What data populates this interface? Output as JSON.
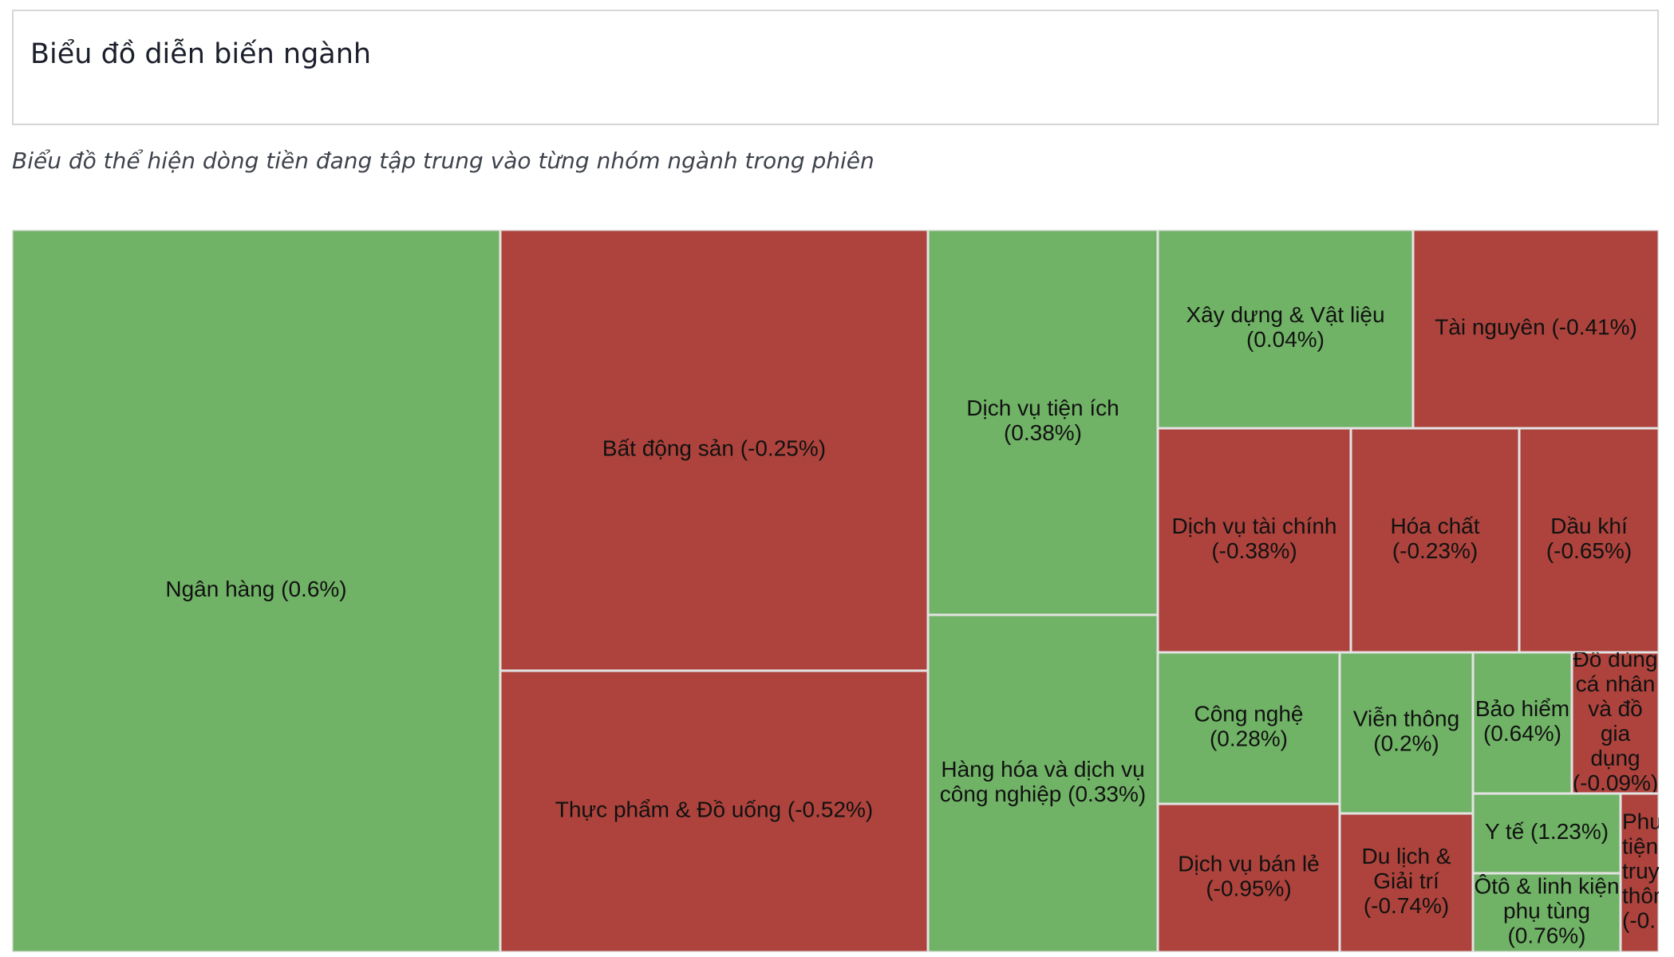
{
  "header": {
    "title": "Biểu đồ diễn biến ngành",
    "subtitle": "Biểu đồ thể hiện dòng tiền đang tập trung vào từng nhóm ngành trong phiên"
  },
  "colors": {
    "positive": "#70b366",
    "negative": "#ad433c",
    "border": "#e3e3e3"
  },
  "chart_data": {
    "type": "treemap",
    "title": "",
    "tiles": [
      {
        "name": "Ngân hàng",
        "change_pct": 0.6,
        "label_lines": [
          "Ngân hàng (0.6%)"
        ]
      },
      {
        "name": "Bất động sản",
        "change_pct": -0.25,
        "label_lines": [
          "Bất động sản (-0.25%)"
        ]
      },
      {
        "name": "Thực phẩm & Đồ uống",
        "change_pct": -0.52,
        "label_lines": [
          "Thực phẩm & Đồ uống (-0.52%)"
        ]
      },
      {
        "name": "Dịch vụ tiện ích",
        "change_pct": 0.38,
        "label_lines": [
          "Dịch vụ tiện ích",
          "(0.38%)"
        ]
      },
      {
        "name": "Hàng hóa và dịch vụ công nghiệp",
        "change_pct": 0.33,
        "label_lines": [
          "Hàng hóa và dịch vụ",
          "công nghiệp (0.33%)"
        ]
      },
      {
        "name": "Xây dựng & Vật liệu",
        "change_pct": 0.04,
        "label_lines": [
          "Xây dựng & Vật liệu",
          "(0.04%)"
        ]
      },
      {
        "name": "Tài nguyên",
        "change_pct": -0.41,
        "label_lines": [
          "Tài nguyên (-0.41%)"
        ]
      },
      {
        "name": "Dịch vụ tài chính",
        "change_pct": -0.38,
        "label_lines": [
          "Dịch vụ tài chính",
          "(-0.38%)"
        ]
      },
      {
        "name": "Hóa chất",
        "change_pct": -0.23,
        "label_lines": [
          "Hóa chất",
          "(-0.23%)"
        ]
      },
      {
        "name": "Dầu khí",
        "change_pct": -0.65,
        "label_lines": [
          "Dầu khí",
          "(-0.65%)"
        ]
      },
      {
        "name": "Công nghệ",
        "change_pct": 0.28,
        "label_lines": [
          "Công nghệ",
          "(0.28%)"
        ]
      },
      {
        "name": "Viễn thông",
        "change_pct": 0.2,
        "label_lines": [
          "Viễn thông",
          "(0.2%)"
        ]
      },
      {
        "name": "Bảo hiểm",
        "change_pct": 0.64,
        "label_lines": [
          "Bảo hiểm",
          "(0.64%)"
        ]
      },
      {
        "name": "Đồ dùng cá nhân và đồ gia dụng",
        "change_pct": -0.09,
        "label_lines": [
          "Đồ dùng",
          "cá nhân",
          "và đồ",
          "gia",
          "dụng",
          "(-0.09%)"
        ]
      },
      {
        "name": "Dịch vụ bán lẻ",
        "change_pct": -0.95,
        "label_lines": [
          "Dịch vụ bán lẻ",
          "(-0.95%)"
        ]
      },
      {
        "name": "Du lịch & Giải trí",
        "change_pct": -0.74,
        "label_lines": [
          "Du lịch &",
          "Giải trí",
          "(-0.74%)"
        ]
      },
      {
        "name": "Y tế",
        "change_pct": 1.23,
        "label_lines": [
          "Y tế (1.23%)"
        ]
      },
      {
        "name": "Ôtô & linh kiện phụ tùng",
        "change_pct": 0.76,
        "label_lines": [
          "Ôtô & linh kiện",
          "phụ tùng",
          "(0.76%)"
        ]
      },
      {
        "name": "Phương tiện truyền thông",
        "change_pct": null,
        "label_lines": [
          "Phư",
          "tiện",
          "truy",
          "thôn",
          "(-0."
        ]
      }
    ]
  }
}
